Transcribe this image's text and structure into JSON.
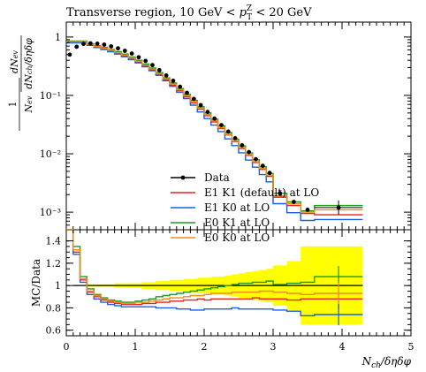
{
  "chart_data": [
    {
      "type": "line",
      "title": "Transverse region, 10 GeV < p_T^Z < 20 GeV",
      "title_parts": {
        "pre": "Transverse region, 10 GeV < ",
        "p": "p",
        "sup": "Z",
        "sub": "T",
        "post": " < 20 GeV"
      },
      "ylabel": "1/N_ev dN_ev/dN_ch/δηδφ",
      "ylabel_parts": {
        "left_num": "1",
        "left_den": "N",
        "left_den_sub": "ev",
        "num": "dN",
        "num_sub": "ev",
        "den": "dN",
        "den_sub": "ch",
        "den_tail": "/δηδφ"
      },
      "yscale": "log",
      "ylim": [
        0.0005,
        1.8
      ],
      "xlim": [
        0,
        5
      ],
      "ytick_labels": [
        "10⁻³",
        "10⁻²",
        "10⁻¹",
        "1"
      ],
      "ytick_values": [
        0.001,
        0.01,
        0.1,
        1
      ],
      "legend_position": "lower-center",
      "bin_edges": [
        0.1,
        0.2,
        0.3,
        0.4,
        0.5,
        0.6,
        0.7,
        0.8,
        0.9,
        1.0,
        1.1,
        1.2,
        1.3,
        1.4,
        1.5,
        1.6,
        1.7,
        1.8,
        1.9,
        2.0,
        2.1,
        2.2,
        2.3,
        2.4,
        2.5,
        2.6,
        2.7,
        2.8,
        2.9,
        3.0,
        3.2,
        3.4,
        3.6,
        4.3
      ],
      "data": {
        "x": [
          0.05,
          0.15,
          0.25,
          0.35,
          0.45,
          0.55,
          0.65,
          0.75,
          0.85,
          0.95,
          1.05,
          1.15,
          1.25,
          1.35,
          1.45,
          1.55,
          1.65,
          1.75,
          1.85,
          1.95,
          2.05,
          2.15,
          2.25,
          2.35,
          2.45,
          2.55,
          2.65,
          2.75,
          2.85,
          2.95,
          3.1,
          3.3,
          3.5,
          3.95
        ],
        "y": [
          0.5,
          0.68,
          0.76,
          0.78,
          0.77,
          0.74,
          0.69,
          0.64,
          0.58,
          0.52,
          0.45,
          0.39,
          0.33,
          0.27,
          0.22,
          0.178,
          0.141,
          0.111,
          0.087,
          0.068,
          0.052,
          0.04,
          0.031,
          0.024,
          0.0185,
          0.014,
          0.0107,
          0.0081,
          0.0062,
          0.0047,
          0.0021,
          0.0015,
          0.0011,
          0.0012
        ]
      },
      "series": [
        {
          "name": "E1 K1 (default) at LO",
          "color": "#e8231a",
          "values": [
            0.8,
            0.8,
            0.8,
            0.73,
            0.68,
            0.63,
            0.58,
            0.53,
            0.48,
            0.43,
            0.37,
            0.32,
            0.275,
            0.227,
            0.185,
            0.15,
            0.12,
            0.094,
            0.074,
            0.058,
            0.045,
            0.035,
            0.027,
            0.021,
            0.0162,
            0.0123,
            0.0094,
            0.0071,
            0.0054,
            0.0041,
            0.0018,
            0.0013,
            0.00095,
            0.0009
          ]
        },
        {
          "name": "E1 K0 at LO",
          "color": "#1a5de8",
          "values": [
            0.79,
            0.79,
            0.79,
            0.72,
            0.66,
            0.61,
            0.56,
            0.51,
            0.46,
            0.41,
            0.36,
            0.31,
            0.265,
            0.22,
            0.178,
            0.143,
            0.113,
            0.088,
            0.068,
            0.052,
            0.04,
            0.031,
            0.024,
            0.018,
            0.0138,
            0.0104,
            0.0078,
            0.0059,
            0.0044,
            0.0033,
            0.0014,
            0.00098,
            0.00072,
            0.00075
          ]
        },
        {
          "name": "E0 K1 at LO",
          "color": "#1c9a1c",
          "values": [
            0.85,
            0.85,
            0.85,
            0.77,
            0.71,
            0.66,
            0.61,
            0.56,
            0.51,
            0.455,
            0.4,
            0.345,
            0.295,
            0.245,
            0.2,
            0.163,
            0.131,
            0.104,
            0.082,
            0.064,
            0.05,
            0.039,
            0.03,
            0.023,
            0.0178,
            0.0136,
            0.0104,
            0.0079,
            0.006,
            0.0046,
            0.0021,
            0.0015,
            0.00105,
            0.0013
          ]
        },
        {
          "name": "E0 K0 at LO",
          "color": "#f28c18",
          "values": [
            0.83,
            0.83,
            0.83,
            0.75,
            0.69,
            0.64,
            0.59,
            0.54,
            0.49,
            0.44,
            0.385,
            0.33,
            0.283,
            0.235,
            0.192,
            0.156,
            0.125,
            0.099,
            0.078,
            0.061,
            0.047,
            0.037,
            0.028,
            0.0215,
            0.0166,
            0.0127,
            0.0097,
            0.0073,
            0.0056,
            0.0043,
            0.0019,
            0.0014,
            0.001,
            0.0011
          ]
        }
      ],
      "data_legend": "Data"
    },
    {
      "type": "line",
      "ylabel": "MC/Data",
      "xlabel": "N_ch/δηδφ",
      "xlabel_parts": {
        "N": "N",
        "sub": "ch",
        "tail": "/δηδφ"
      },
      "xlim": [
        0,
        5
      ],
      "ylim": [
        0.55,
        1.5
      ],
      "xtick_labels": [
        "0",
        "1",
        "2",
        "3",
        "4",
        "5"
      ],
      "ytick_labels": [
        "0.6",
        "0.8",
        "1",
        "1.2",
        "1.4"
      ],
      "ytick_values": [
        0.6,
        0.8,
        1.0,
        1.2,
        1.4
      ],
      "uncertainty_band_color": "#ffff00",
      "band_upper": [
        1.0,
        1.0,
        1.0,
        1.01,
        1.01,
        1.01,
        1.01,
        1.02,
        1.02,
        1.02,
        1.02,
        1.03,
        1.03,
        1.04,
        1.04,
        1.05,
        1.05,
        1.06,
        1.06,
        1.07,
        1.07,
        1.08,
        1.08,
        1.09,
        1.1,
        1.11,
        1.12,
        1.13,
        1.14,
        1.15,
        1.18,
        1.22,
        1.35,
        1.35
      ],
      "band_lower": [
        1.0,
        1.0,
        1.0,
        0.99,
        0.99,
        0.99,
        0.99,
        0.98,
        0.98,
        0.98,
        0.98,
        0.97,
        0.97,
        0.96,
        0.96,
        0.95,
        0.95,
        0.94,
        0.94,
        0.93,
        0.93,
        0.92,
        0.92,
        0.91,
        0.9,
        0.89,
        0.88,
        0.87,
        0.86,
        0.85,
        0.82,
        0.78,
        0.65,
        0.65
      ],
      "series": [
        {
          "name": "E1 K1 (default) at LO",
          "color": "#e8231a",
          "values": [
            1.6,
            1.3,
            1.05,
            0.94,
            0.9,
            0.87,
            0.85,
            0.84,
            0.83,
            0.83,
            0.83,
            0.84,
            0.84,
            0.85,
            0.85,
            0.86,
            0.86,
            0.87,
            0.87,
            0.88,
            0.87,
            0.88,
            0.88,
            0.88,
            0.88,
            0.88,
            0.88,
            0.89,
            0.88,
            0.88,
            0.88,
            0.87,
            0.88,
            0.88
          ]
        },
        {
          "name": "E1 K0 at LO",
          "color": "#1a5de8",
          "values": [
            1.58,
            1.28,
            1.03,
            0.92,
            0.88,
            0.85,
            0.83,
            0.82,
            0.81,
            0.81,
            0.81,
            0.81,
            0.81,
            0.8,
            0.8,
            0.8,
            0.79,
            0.79,
            0.78,
            0.78,
            0.79,
            0.79,
            0.79,
            0.79,
            0.8,
            0.79,
            0.79,
            0.79,
            0.79,
            0.79,
            0.78,
            0.77,
            0.73,
            0.74
          ]
        },
        {
          "name": "E0 K1 at LO",
          "color": "#1c9a1c",
          "values": [
            1.7,
            1.35,
            1.08,
            0.97,
            0.92,
            0.89,
            0.87,
            0.86,
            0.85,
            0.85,
            0.86,
            0.87,
            0.88,
            0.9,
            0.91,
            0.92,
            0.93,
            0.94,
            0.95,
            0.96,
            0.97,
            0.98,
            0.99,
            1.0,
            1.01,
            1.02,
            1.02,
            1.03,
            1.03,
            1.04,
            1.01,
            1.02,
            1.03,
            1.08
          ]
        },
        {
          "name": "E0 K0 at LO",
          "color": "#f28c18",
          "values": [
            1.65,
            1.32,
            1.06,
            0.95,
            0.91,
            0.88,
            0.86,
            0.85,
            0.84,
            0.84,
            0.85,
            0.85,
            0.86,
            0.87,
            0.88,
            0.89,
            0.89,
            0.9,
            0.91,
            0.91,
            0.92,
            0.93,
            0.93,
            0.93,
            0.94,
            0.94,
            0.94,
            0.94,
            0.95,
            0.95,
            0.94,
            0.93,
            0.92,
            0.93
          ]
        }
      ]
    }
  ]
}
